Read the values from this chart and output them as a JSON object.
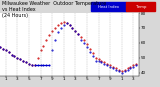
{
  "bg_color": "#d8d8d8",
  "plot_bg": "#ffffff",
  "ylim": [
    38,
    80
  ],
  "xlim": [
    0,
    24
  ],
  "xticks": [
    1,
    3,
    5,
    7,
    9,
    11,
    13,
    15,
    17,
    19,
    21,
    23
  ],
  "xtick_labels": [
    "1",
    "3",
    "5",
    "7",
    "9",
    "1",
    "3",
    "5",
    "7",
    "9",
    "1",
    "3"
  ],
  "grid_x": [
    1,
    3,
    5,
    7,
    9,
    11,
    13,
    15,
    17,
    19,
    21,
    23
  ],
  "ytick_vals": [
    40,
    50,
    60,
    70,
    80
  ],
  "temp_x": [
    0,
    0.5,
    1,
    1.5,
    2,
    2.5,
    3,
    3.5,
    4,
    4.5,
    5,
    5.5,
    6,
    6.5,
    7,
    7.5,
    8,
    8.5,
    9,
    9.5,
    10,
    10.5,
    11,
    11.5,
    12,
    12.5,
    13,
    13.5,
    14,
    14.5,
    15,
    15.5,
    16,
    16.5,
    17,
    17.5,
    18,
    18.5,
    19,
    19.5,
    20,
    20.5,
    21,
    21.5,
    22,
    22.5,
    23,
    23.5
  ],
  "temp_y": [
    57,
    56,
    55,
    54,
    52,
    51,
    50,
    49,
    48,
    47,
    46,
    45,
    45,
    50,
    55,
    58,
    62,
    65,
    68,
    70,
    72,
    73,
    74,
    73,
    72,
    70,
    68,
    66,
    64,
    62,
    59,
    56,
    53,
    50,
    49,
    48,
    47,
    46,
    45,
    44,
    43,
    42,
    41,
    42,
    43,
    44,
    45,
    46
  ],
  "hi_x": [
    0,
    0.5,
    1,
    1.5,
    2,
    2.5,
    3,
    3.5,
    4,
    4.5,
    5,
    5.5,
    6,
    6.5,
    7,
    7.5,
    8,
    8.5,
    9,
    9.5,
    10,
    10.5,
    11,
    11.5,
    12,
    12.5,
    13,
    13.5,
    14,
    14.5,
    15,
    15.5,
    16,
    16.5,
    17,
    17.5,
    18,
    18.5,
    19,
    19.5,
    20,
    20.5,
    21,
    21.5,
    22,
    22.5,
    23,
    23.5
  ],
  "hi_y": [
    57,
    56,
    55,
    54,
    52,
    51,
    50,
    49,
    48,
    47,
    46,
    45,
    45,
    45,
    45,
    45,
    45,
    45,
    55,
    62,
    67,
    70,
    72,
    73,
    72,
    70,
    68,
    66,
    62,
    60,
    57,
    54,
    51,
    48,
    48,
    47,
    46,
    45,
    44,
    43,
    42,
    41,
    40,
    41,
    42,
    43,
    44,
    45
  ],
  "flat_line_x": [
    6.0,
    8.5
  ],
  "flat_line_y": [
    45,
    45
  ],
  "temp_color": "#cc0000",
  "hi_color": "#0000cc",
  "flat_line_color": "#0000cc",
  "hi_label": "Heat Index",
  "temp_label": "Temp"
}
